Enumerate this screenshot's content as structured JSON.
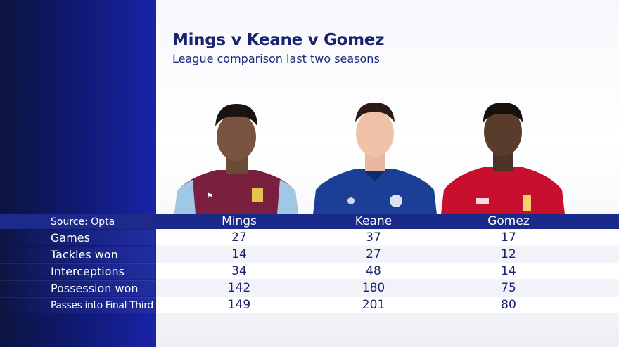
{
  "title": "Mings v Keane v Gomez",
  "subtitle": "League comparison last two seasons",
  "source": "Source: Opta",
  "players": [
    "Mings",
    "Keane",
    "Gomez"
  ],
  "kit_colors": {
    "mings": "#7a1f3d",
    "keane": "#1b3f94",
    "gomez": "#c8102e"
  },
  "rows": [
    {
      "label": "Games",
      "values": [
        "27",
        "37",
        "17"
      ]
    },
    {
      "label": "Tackles won",
      "values": [
        "14",
        "27",
        "12"
      ]
    },
    {
      "label": "Interceptions",
      "values": [
        "34",
        "48",
        "14"
      ]
    },
    {
      "label": "Possession won",
      "values": [
        "142",
        "180",
        "75"
      ]
    },
    {
      "label": "Passes into Final Third",
      "values": [
        "149",
        "201",
        "80"
      ]
    }
  ]
}
